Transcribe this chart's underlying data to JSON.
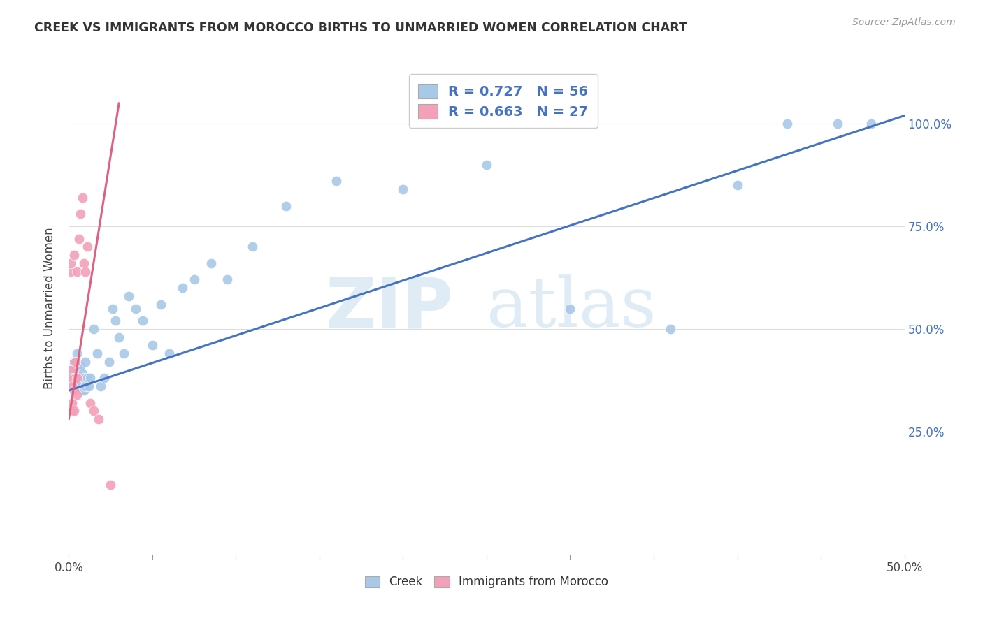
{
  "title": "CREEK VS IMMIGRANTS FROM MOROCCO BIRTHS TO UNMARRIED WOMEN CORRELATION CHART",
  "source": "Source: ZipAtlas.com",
  "ylabel": "Births to Unmarried Women",
  "creek_color": "#a8c8e8",
  "morocco_color": "#f4a0b8",
  "creek_line_color": "#4472c4",
  "morocco_line_color": "#e06080",
  "watermark_zip": "ZIP",
  "watermark_atlas": "atlas",
  "xlim": [
    0.0,
    0.5
  ],
  "ylim": [
    -0.05,
    1.15
  ],
  "ytick_vals": [
    0.25,
    0.5,
    0.75,
    1.0
  ],
  "ytick_labels": [
    "25.0%",
    "50.0%",
    "75.0%",
    "100.0%"
  ],
  "creek_line": {
    "x0": 0.0,
    "y0": 0.35,
    "x1": 0.5,
    "y1": 1.02
  },
  "morocco_line": {
    "x0": 0.0,
    "y0": 0.28,
    "x1": 0.03,
    "y1": 1.05
  },
  "creek_scatter_x": [
    0.001,
    0.002,
    0.002,
    0.003,
    0.003,
    0.003,
    0.004,
    0.004,
    0.004,
    0.005,
    0.005,
    0.005,
    0.006,
    0.006,
    0.006,
    0.007,
    0.007,
    0.008,
    0.008,
    0.009,
    0.009,
    0.01,
    0.01,
    0.011,
    0.012,
    0.013,
    0.015,
    0.017,
    0.019,
    0.021,
    0.024,
    0.026,
    0.028,
    0.03,
    0.033,
    0.036,
    0.04,
    0.044,
    0.05,
    0.055,
    0.06,
    0.068,
    0.075,
    0.085,
    0.095,
    0.11,
    0.13,
    0.16,
    0.2,
    0.25,
    0.3,
    0.36,
    0.4,
    0.43,
    0.46,
    0.48
  ],
  "creek_scatter_y": [
    0.36,
    0.38,
    0.4,
    0.36,
    0.38,
    0.42,
    0.36,
    0.38,
    0.42,
    0.35,
    0.38,
    0.44,
    0.36,
    0.38,
    0.41,
    0.37,
    0.41,
    0.35,
    0.39,
    0.35,
    0.38,
    0.36,
    0.42,
    0.38,
    0.36,
    0.38,
    0.5,
    0.44,
    0.36,
    0.38,
    0.42,
    0.55,
    0.52,
    0.48,
    0.44,
    0.58,
    0.55,
    0.52,
    0.46,
    0.56,
    0.44,
    0.6,
    0.62,
    0.66,
    0.62,
    0.7,
    0.8,
    0.86,
    0.84,
    0.9,
    0.55,
    0.5,
    0.85,
    1.0,
    1.0,
    1.0
  ],
  "morocco_scatter_x": [
    0.001,
    0.001,
    0.001,
    0.001,
    0.001,
    0.002,
    0.002,
    0.002,
    0.002,
    0.003,
    0.003,
    0.003,
    0.004,
    0.004,
    0.005,
    0.005,
    0.005,
    0.006,
    0.007,
    0.008,
    0.009,
    0.01,
    0.011,
    0.013,
    0.015,
    0.018,
    0.025
  ],
  "morocco_scatter_y": [
    0.36,
    0.38,
    0.4,
    0.64,
    0.66,
    0.3,
    0.32,
    0.36,
    0.38,
    0.3,
    0.35,
    0.68,
    0.38,
    0.42,
    0.34,
    0.38,
    0.64,
    0.72,
    0.78,
    0.82,
    0.66,
    0.64,
    0.7,
    0.32,
    0.3,
    0.28,
    0.12
  ]
}
